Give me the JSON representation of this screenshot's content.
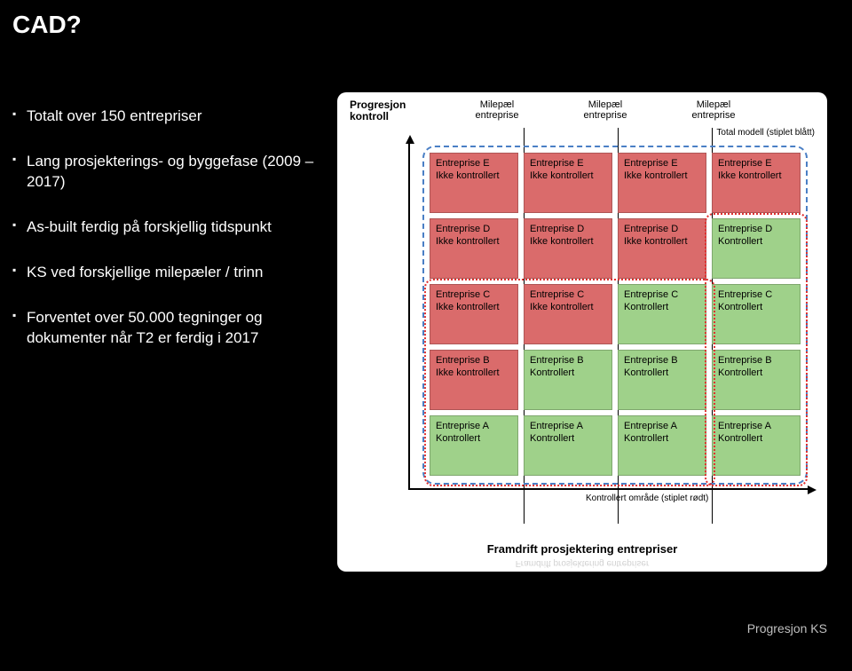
{
  "title": "CAD?",
  "bullets": [
    "Totalt over 150 entrepriser",
    "Lang prosjekterings- og byggefase (2009 – 2017)",
    "As-built ferdig på forskjellig tidspunkt",
    "KS ved forskjellige milepæler / trinn",
    "Forventet over 50.000 tegninger og dokumenter når T2 er ferdig i 2017"
  ],
  "diagram": {
    "y_axis": {
      "line1": "Progresjon",
      "line2": "kontroll"
    },
    "x_axis": "Framdrift prosjektering entrepriser",
    "milestone_label": {
      "line1": "Milepæl",
      "line2": "entreprise"
    },
    "total_model_note": "Total modell (stiplet blått)",
    "kontrollert_note": "Kontrollert område (stiplet rødt)",
    "colors": {
      "background": "#ffffff",
      "red_cell": "#da6b6b",
      "green_cell": "#9fd18a",
      "blue_dash": "#4a7fc5",
      "red_dash": "#e03030",
      "text": "#000000"
    },
    "status_labels": {
      "not": "Ikke kontrollert",
      "yes": "Kontrollert"
    },
    "enterprise_prefix": "Entreprise",
    "rows": [
      "E",
      "D",
      "C",
      "B",
      "A"
    ],
    "cols": 4,
    "grid": [
      [
        {
          "e": "E",
          "k": false
        },
        {
          "e": "E",
          "k": false
        },
        {
          "e": "E",
          "k": false
        },
        {
          "e": "E",
          "k": false
        }
      ],
      [
        {
          "e": "D",
          "k": false
        },
        {
          "e": "D",
          "k": false
        },
        {
          "e": "D",
          "k": false
        },
        {
          "e": "D",
          "k": true
        }
      ],
      [
        {
          "e": "C",
          "k": false
        },
        {
          "e": "C",
          "k": false
        },
        {
          "e": "C",
          "k": true
        },
        {
          "e": "C",
          "k": true
        }
      ],
      [
        {
          "e": "B",
          "k": false
        },
        {
          "e": "B",
          "k": true
        },
        {
          "e": "B",
          "k": true
        },
        {
          "e": "B",
          "k": true
        }
      ],
      [
        {
          "e": "A",
          "k": true
        },
        {
          "e": "A",
          "k": true
        },
        {
          "e": "A",
          "k": true
        },
        {
          "e": "A",
          "k": true
        }
      ]
    ]
  },
  "caption": "Progresjon KS"
}
